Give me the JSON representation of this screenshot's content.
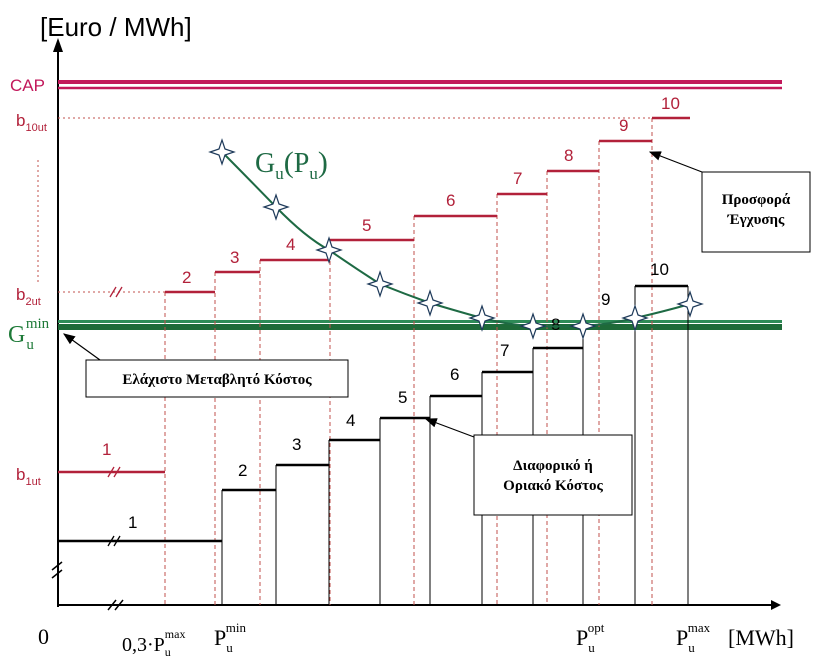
{
  "axis": {
    "y_unit": "[Euro / MWh]",
    "x_unit": "[MWh]",
    "origin": "0"
  },
  "levels": {
    "cap": "CAP",
    "b10": {
      "base": "b",
      "sub": "10ut"
    },
    "b2": {
      "base": "b",
      "sub": "2ut"
    },
    "b1": {
      "base": "b",
      "sub": "1ut"
    },
    "gmin": {
      "base": "G",
      "sub": "u",
      "sup": "min"
    }
  },
  "x_labels": {
    "p03": {
      "prefix": "0,3·P",
      "sub": "u",
      "sup": "max"
    },
    "pmin": {
      "base": "P",
      "sub": "u",
      "sup": "min"
    },
    "popt": {
      "base": "P",
      "sub": "u",
      "sup": "opt"
    },
    "pmax": {
      "base": "P",
      "sub": "u",
      "sup": "max"
    }
  },
  "curve_label": {
    "g": "G",
    "sub": "u",
    "open": "(",
    "p": "P",
    "psub": "u",
    "close": ")"
  },
  "offer_steps": [
    "1",
    "2",
    "3",
    "4",
    "5",
    "6",
    "7",
    "8",
    "9",
    "10"
  ],
  "cost_steps": [
    "1",
    "2",
    "3",
    "4",
    "5",
    "6",
    "7",
    "8",
    "9",
    "10"
  ],
  "callouts": {
    "offer": [
      "Προσφορά",
      "Έγχυσης"
    ],
    "min_cost": "Ελάχιστο Μεταβλητό Κόστος",
    "marginal": [
      "Διαφορικό ή",
      "Οριακό Κόστος"
    ]
  },
  "colors": {
    "cap": "#c2185b",
    "offer": "#b2213a",
    "cost": "#000000",
    "gmin": "#1e7a38",
    "curve": "#1e6a44"
  }
}
